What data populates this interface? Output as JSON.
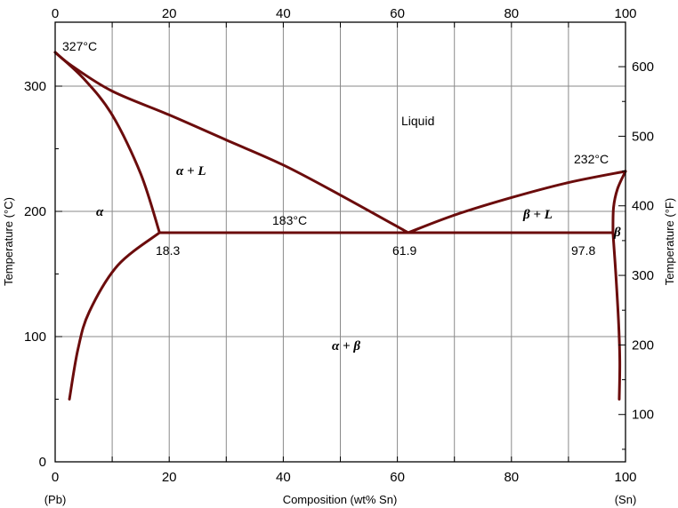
{
  "chart_data": {
    "type": "line",
    "title": "",
    "xlabel": "Composition (wt% Sn)",
    "xlabel_left_end": "(Pb)",
    "xlabel_right_end": "(Sn)",
    "ylabel": "Temperature (°C)",
    "ylabel_right": "Temperature (°F)",
    "xlim": [
      0,
      100
    ],
    "ylim": [
      0,
      350
    ],
    "bottom_ticks": [
      "0",
      "20",
      "40",
      "60",
      "80",
      "100"
    ],
    "top_ticks": [
      "0",
      "20",
      "40",
      "60",
      "80",
      "100"
    ],
    "left_ticks": [
      "0",
      "100",
      "200",
      "300"
    ],
    "right_ticks": [
      "100",
      "200",
      "300",
      "400",
      "500",
      "600"
    ],
    "grid": true,
    "series": [
      {
        "values": [
          [
            0,
            327
          ],
          [
            3,
            316
          ],
          [
            10,
            296
          ],
          [
            20,
            277
          ],
          [
            30,
            257
          ],
          [
            40,
            237
          ],
          [
            50,
            213
          ],
          [
            61.9,
            183
          ]
        ]
      },
      {
        "values": [
          [
            61.9,
            183
          ],
          [
            70,
            197
          ],
          [
            80,
            211
          ],
          [
            90,
            223
          ],
          [
            100,
            232
          ]
        ]
      },
      {
        "values": [
          [
            0,
            327
          ],
          [
            5,
            306
          ],
          [
            10,
            277
          ],
          [
            15,
            230
          ],
          [
            18.3,
            183
          ]
        ]
      },
      {
        "values": [
          [
            18.3,
            183
          ],
          [
            11,
            157
          ],
          [
            6,
            120
          ],
          [
            4,
            90
          ],
          [
            2.5,
            50
          ]
        ]
      },
      {
        "values": [
          [
            18.3,
            183
          ],
          [
            97.8,
            183
          ]
        ]
      },
      {
        "values": [
          [
            97.8,
            183
          ],
          [
            97.9,
            203
          ],
          [
            98.6,
            218
          ],
          [
            100,
            232
          ]
        ]
      },
      {
        "values": [
          [
            97.8,
            183
          ],
          [
            98.3,
            150
          ],
          [
            98.8,
            110
          ],
          [
            99,
            80
          ],
          [
            98.9,
            50
          ]
        ]
      }
    ],
    "annotations": {
      "pb_melt": "327°C",
      "sn_melt": "232°C",
      "eutectic_temp": "183°C",
      "comp_alpha": "18.3",
      "comp_eutectic": "61.9",
      "comp_beta": "97.8",
      "liquid": "Liquid",
      "alpha": "α",
      "alpha_L": "α + L",
      "beta_L": "β + L",
      "beta": "β",
      "alpha_beta": "α + β"
    }
  }
}
